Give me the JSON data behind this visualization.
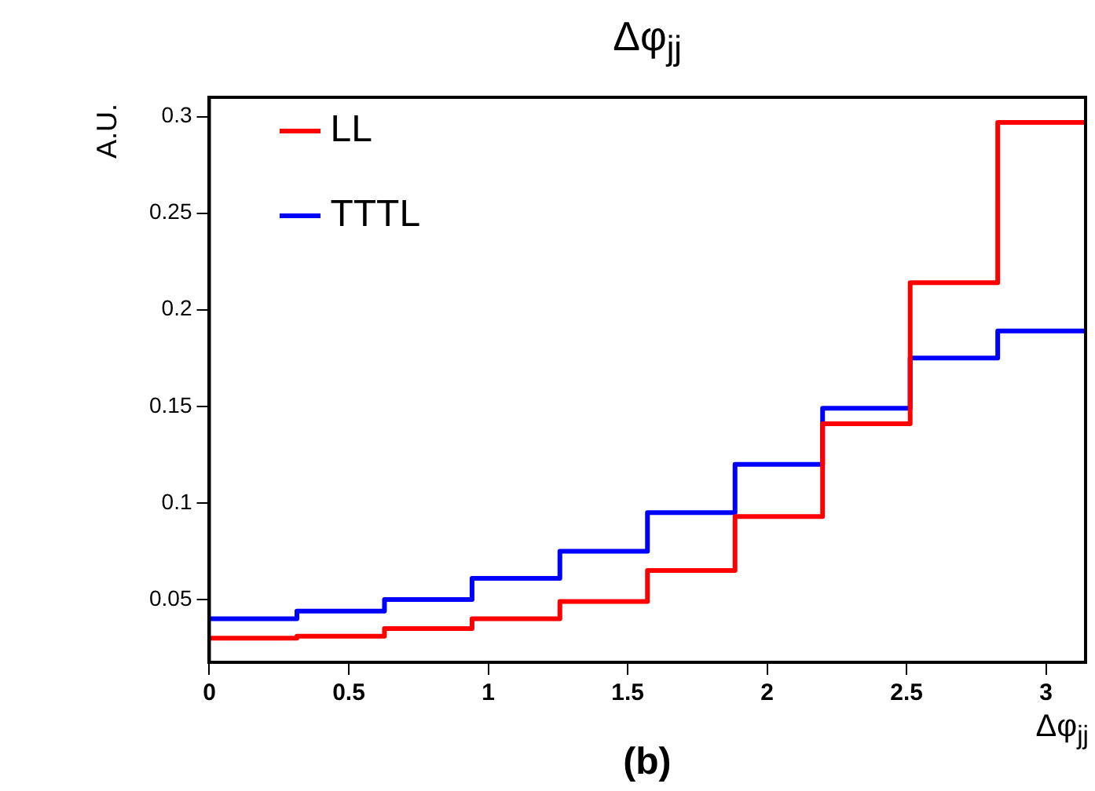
{
  "chart_data": {
    "type": "histogram",
    "title": "Δφ$_{jj}$",
    "xlabel": "Δφ$_{jj}$",
    "ylabel": "A.U.",
    "annotations": [
      "(b)"
    ],
    "bins": [
      0,
      0.314,
      0.628,
      0.942,
      1.257,
      1.571,
      1.885,
      2.199,
      2.513,
      2.827,
      3.142
    ],
    "series": [
      {
        "name": "LL",
        "color": "#ff0000",
        "values": [
          0.03,
          0.031,
          0.035,
          0.04,
          0.049,
          0.065,
          0.093,
          0.141,
          0.214,
          0.297
        ]
      },
      {
        "name": "TTTL",
        "color": "#0000ff",
        "values": [
          0.04,
          0.044,
          0.05,
          0.061,
          0.075,
          0.095,
          0.12,
          0.149,
          0.175,
          0.189
        ]
      }
    ],
    "xlim": [
      0,
      3.142
    ],
    "ylim": [
      0.0175,
      0.31
    ],
    "xticks": [
      0,
      0.5,
      1,
      1.5,
      2,
      2.5,
      3
    ],
    "yticks": [
      0.05,
      0.1,
      0.15,
      0.2,
      0.25,
      0.3
    ],
    "legend": "top left",
    "grid": false,
    "line_style": "solid"
  }
}
